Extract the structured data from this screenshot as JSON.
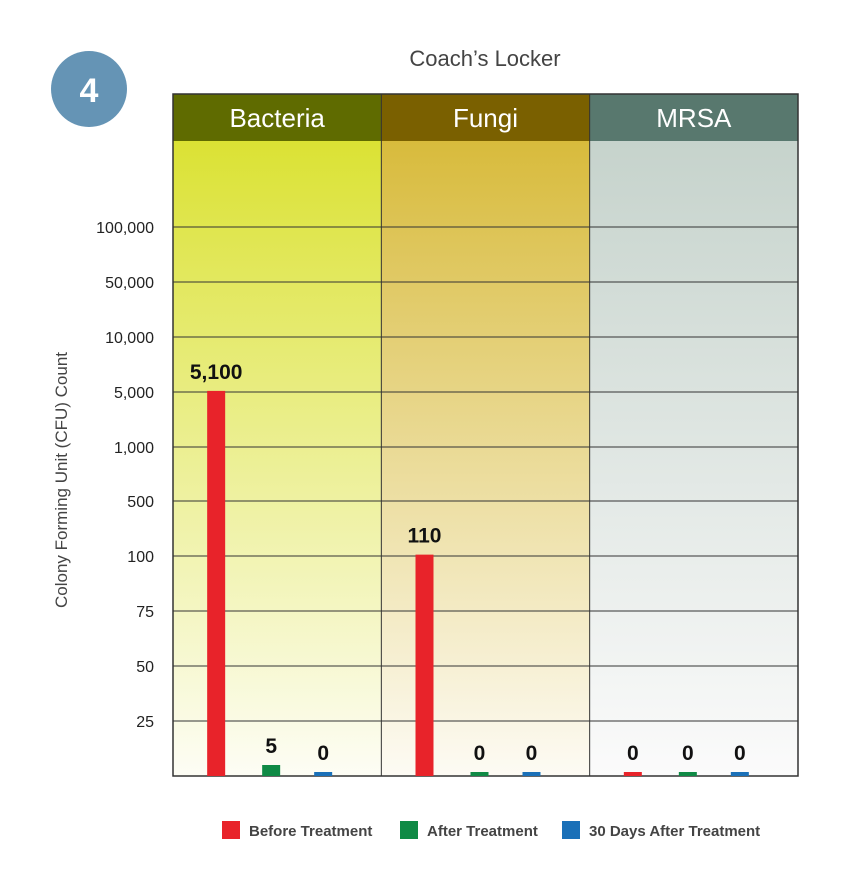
{
  "badge": "4",
  "chart_data": {
    "type": "bar",
    "title": "Coach’s Locker",
    "ylabel": "Colony Forming Unit (CFU) Count",
    "xlabel": "",
    "y_ticks": [
      "25",
      "50",
      "75",
      "100",
      "500",
      "1,000",
      "5,000",
      "10,000",
      "50,000",
      "100,000"
    ],
    "y_tick_values": [
      25,
      50,
      75,
      100,
      500,
      1000,
      5000,
      10000,
      50000,
      100000
    ],
    "categories": [
      "Bacteria",
      "Fungi",
      "MRSA"
    ],
    "category_colors": [
      {
        "header": "#5f6b00",
        "top": "#dbe234",
        "bottom": "#fdfdf5"
      },
      {
        "header": "#7a6000",
        "top": "#d8bb3c",
        "bottom": "#fdfbf4"
      },
      {
        "header": "#58786e",
        "top": "#c6d3cc",
        "bottom": "#fbfbfb"
      }
    ],
    "series": [
      {
        "name": "Before Treatment",
        "color": "#e8232a",
        "values": [
          5100,
          110,
          0
        ],
        "labels": [
          "5,100",
          "110",
          "0"
        ]
      },
      {
        "name": "After Treatment",
        "color": "#0f8a45",
        "values": [
          5,
          0,
          0
        ],
        "labels": [
          "5",
          "0",
          "0"
        ]
      },
      {
        "name": "30 Days After Treatment",
        "color": "#1a70b8",
        "values": [
          0,
          0,
          0
        ],
        "labels": [
          "0",
          "0",
          "0"
        ]
      }
    ],
    "grid": true,
    "legend_position": "bottom"
  }
}
